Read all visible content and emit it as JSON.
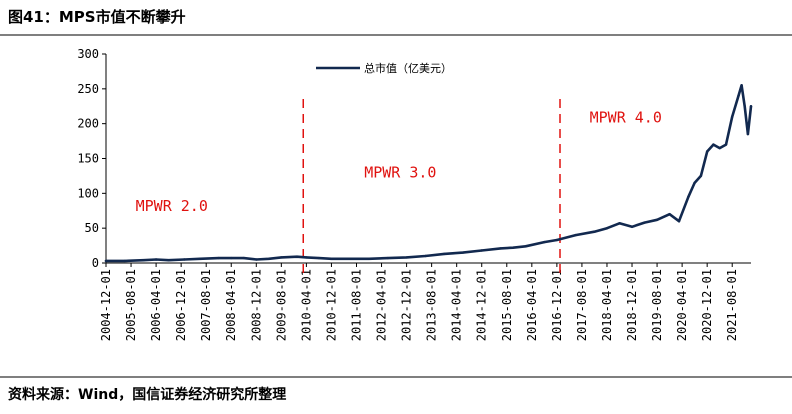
{
  "figure_title": "图41：MPS市值不断攀升",
  "source": "资料来源：Wind，国信证券经济研究所整理",
  "colors": {
    "line": "#12294f",
    "divider": "#e0120f",
    "era_text": "#e0120f",
    "axis": "#000000"
  },
  "chart_data": {
    "type": "line",
    "title": "",
    "xlabel": "",
    "ylabel": "",
    "ylim": [
      0,
      300
    ],
    "yticks": [
      0,
      50,
      100,
      150,
      200,
      250,
      300
    ],
    "grid": false,
    "legend": {
      "position": "top",
      "entries": [
        "总市值（亿美元）"
      ]
    },
    "x_tick_labels": [
      "2004-12-01",
      "2005-08-01",
      "2006-04-01",
      "2006-12-01",
      "2007-08-01",
      "2008-04-01",
      "2008-12-01",
      "2009-08-01",
      "2010-04-01",
      "2010-12-01",
      "2011-08-01",
      "2012-04-01",
      "2012-12-01",
      "2013-08-01",
      "2014-04-01",
      "2014-12-01",
      "2015-08-01",
      "2016-04-01",
      "2016-12-01",
      "2017-08-01",
      "2018-04-01",
      "2018-12-01",
      "2019-08-01",
      "2020-04-01",
      "2020-12-01",
      "2021-08-01"
    ],
    "x_range": [
      "2004-12-01",
      "2022-02-01"
    ],
    "dividers": [
      {
        "date": "2010-03-01",
        "label": "MPWR 2.0 → MPWR 3.0"
      },
      {
        "date": "2017-01-01",
        "label": "MPWR 3.0 → MPWR 4.0"
      }
    ],
    "era_labels": [
      {
        "text": "MPWR 2.0",
        "x_date": "2006-09-01",
        "y": 75
      },
      {
        "text": "MPWR 3.0",
        "x_date": "2012-10-01",
        "y": 123
      },
      {
        "text": "MPWR 4.0",
        "x_date": "2018-10-01",
        "y": 202
      }
    ],
    "series": [
      {
        "name": "总市值（亿美元）",
        "points": [
          [
            "2004-12-01",
            3
          ],
          [
            "2005-06-01",
            3
          ],
          [
            "2005-12-01",
            4
          ],
          [
            "2006-04-01",
            5
          ],
          [
            "2006-08-01",
            4
          ],
          [
            "2007-01-01",
            5
          ],
          [
            "2007-06-01",
            6
          ],
          [
            "2007-12-01",
            7
          ],
          [
            "2008-04-01",
            7
          ],
          [
            "2008-08-01",
            7
          ],
          [
            "2008-12-01",
            5
          ],
          [
            "2009-04-01",
            6
          ],
          [
            "2009-08-01",
            8
          ],
          [
            "2010-01-01",
            9
          ],
          [
            "2010-04-01",
            8
          ],
          [
            "2010-08-01",
            7
          ],
          [
            "2010-12-01",
            6
          ],
          [
            "2011-06-01",
            6
          ],
          [
            "2011-12-01",
            6
          ],
          [
            "2012-06-01",
            7
          ],
          [
            "2012-12-01",
            8
          ],
          [
            "2013-06-01",
            10
          ],
          [
            "2013-12-01",
            13
          ],
          [
            "2014-06-01",
            15
          ],
          [
            "2014-12-01",
            18
          ],
          [
            "2015-06-01",
            21
          ],
          [
            "2015-10-01",
            22
          ],
          [
            "2016-02-01",
            24
          ],
          [
            "2016-08-01",
            30
          ],
          [
            "2016-12-01",
            33
          ],
          [
            "2017-06-01",
            40
          ],
          [
            "2017-12-01",
            45
          ],
          [
            "2018-04-01",
            50
          ],
          [
            "2018-08-01",
            57
          ],
          [
            "2018-12-01",
            52
          ],
          [
            "2019-04-01",
            58
          ],
          [
            "2019-08-01",
            62
          ],
          [
            "2019-12-01",
            70
          ],
          [
            "2020-03-01",
            60
          ],
          [
            "2020-06-01",
            95
          ],
          [
            "2020-08-01",
            115
          ],
          [
            "2020-10-01",
            125
          ],
          [
            "2020-12-01",
            160
          ],
          [
            "2021-02-01",
            170
          ],
          [
            "2021-04-01",
            165
          ],
          [
            "2021-06-01",
            170
          ],
          [
            "2021-08-01",
            210
          ],
          [
            "2021-10-01",
            240
          ],
          [
            "2021-11-01",
            255
          ],
          [
            "2021-12-01",
            225
          ],
          [
            "2022-01-01",
            185
          ],
          [
            "2022-02-01",
            225
          ]
        ]
      }
    ]
  }
}
